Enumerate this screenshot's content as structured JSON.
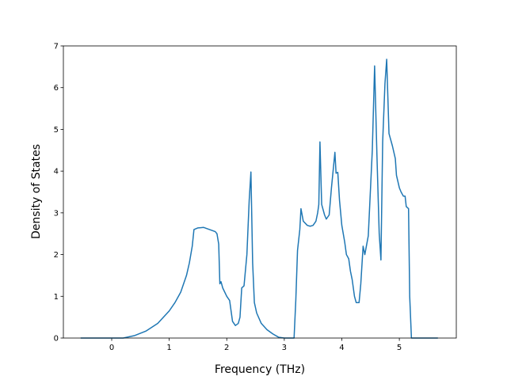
{
  "chart_data": {
    "type": "line",
    "xlabel": "Frequency (THz)",
    "ylabel": "Density of States",
    "color": "#1f77b4",
    "x": [
      -0.54,
      0.2,
      0.4,
      0.6,
      0.8,
      1.0,
      1.1,
      1.2,
      1.3,
      1.35,
      1.4,
      1.43,
      1.5,
      1.6,
      1.7,
      1.8,
      1.83,
      1.86,
      1.88,
      1.9,
      1.93,
      2.0,
      2.05,
      2.1,
      2.15,
      2.2,
      2.23,
      2.26,
      2.3,
      2.35,
      2.39,
      2.42,
      2.45,
      2.48,
      2.52,
      2.6,
      2.7,
      2.8,
      2.9,
      3.0,
      3.1,
      3.17,
      3.2,
      3.23,
      3.27,
      3.29,
      3.33,
      3.4,
      3.45,
      3.5,
      3.55,
      3.58,
      3.6,
      3.62,
      3.65,
      3.7,
      3.73,
      3.78,
      3.82,
      3.88,
      3.9,
      3.93,
      3.96,
      4.0,
      4.05,
      4.08,
      4.12,
      4.15,
      4.18,
      4.22,
      4.25,
      4.3,
      4.33,
      4.37,
      4.4,
      4.46,
      4.53,
      4.57,
      4.61,
      4.65,
      4.68,
      4.71,
      4.75,
      4.78,
      4.82,
      4.88,
      4.93,
      4.95,
      5.0,
      5.03,
      5.07,
      5.1,
      5.12,
      5.16,
      5.18,
      5.21,
      5.67
    ],
    "values": [
      0,
      0,
      0.06,
      0.17,
      0.35,
      0.65,
      0.85,
      1.1,
      1.5,
      1.8,
      2.2,
      2.6,
      2.64,
      2.65,
      2.6,
      2.55,
      2.5,
      2.25,
      1.3,
      1.35,
      1.2,
      1.0,
      0.9,
      0.4,
      0.3,
      0.35,
      0.5,
      1.2,
      1.25,
      2.0,
      3.3,
      3.98,
      1.8,
      0.85,
      0.6,
      0.35,
      0.2,
      0.1,
      0.02,
      0,
      0,
      0,
      0.9,
      2.1,
      2.6,
      3.1,
      2.8,
      2.7,
      2.68,
      2.7,
      2.8,
      3.0,
      3.2,
      4.7,
      3.2,
      2.95,
      2.85,
      2.95,
      3.6,
      4.45,
      3.95,
      3.97,
      3.3,
      2.7,
      2.3,
      2.0,
      1.9,
      1.6,
      1.4,
      1.0,
      0.85,
      0.85,
      1.3,
      2.2,
      2.0,
      2.45,
      4.5,
      6.52,
      4.4,
      2.5,
      1.87,
      4.7,
      6.1,
      6.68,
      4.9,
      4.6,
      4.3,
      3.9,
      3.6,
      3.5,
      3.4,
      3.4,
      3.15,
      3.1,
      1.0,
      0,
      0
    ],
    "xlim": [
      -0.84,
      5.99
    ],
    "ylim": [
      0,
      7
    ],
    "xticks": [
      0,
      1,
      2,
      3,
      4,
      5
    ],
    "yticks": [
      0,
      1,
      2,
      3,
      4,
      5,
      6,
      7
    ]
  }
}
